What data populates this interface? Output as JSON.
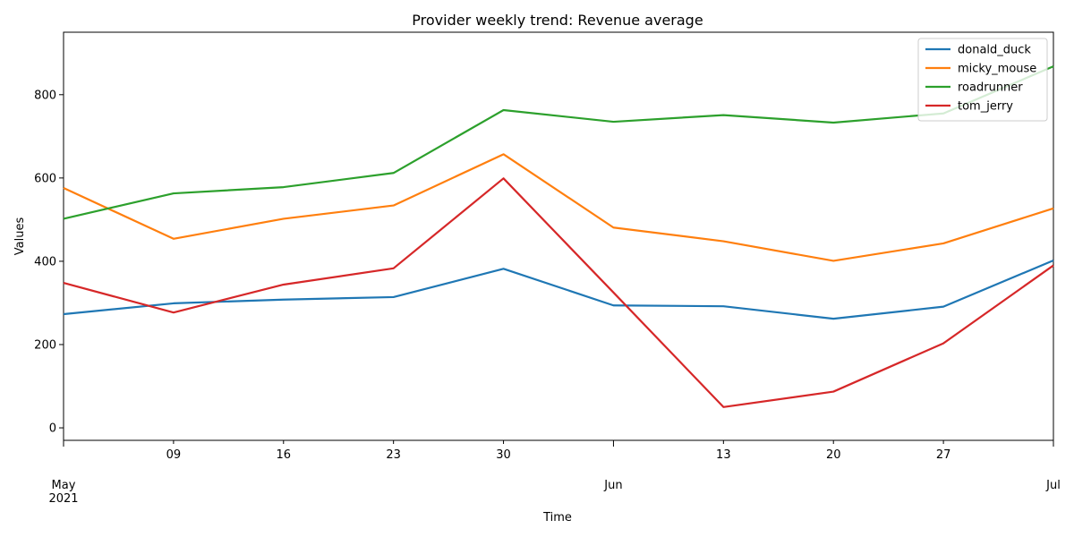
{
  "chart_data": {
    "type": "line",
    "title": "Provider weekly trend: Revenue average",
    "xlabel": "Time",
    "ylabel": "Values",
    "ylim": [
      -30,
      950
    ],
    "xlim": [
      "2021-05-02",
      "2021-07-04"
    ],
    "y_ticks": [
      0,
      200,
      400,
      600,
      800
    ],
    "x_ticks": [
      {
        "date": "2021-05-02",
        "label": "May",
        "sublabel": "2021"
      },
      {
        "date": "2021-05-09",
        "label": "09"
      },
      {
        "date": "2021-05-16",
        "label": "16"
      },
      {
        "date": "2021-05-23",
        "label": "23"
      },
      {
        "date": "2021-05-30",
        "label": "30"
      },
      {
        "date": "2021-06-06",
        "label": "Jun"
      },
      {
        "date": "2021-06-13",
        "label": "13"
      },
      {
        "date": "2021-06-20",
        "label": "20"
      },
      {
        "date": "2021-06-27",
        "label": "27"
      },
      {
        "date": "2021-07-04",
        "label": "Jul"
      }
    ],
    "x": [
      "2021-05-02",
      "2021-05-09",
      "2021-05-16",
      "2021-05-23",
      "2021-05-30",
      "2021-06-06",
      "2021-06-13",
      "2021-06-20",
      "2021-06-27",
      "2021-07-04"
    ],
    "legend_position": "top-right",
    "grid": false,
    "series": [
      {
        "name": "donald_duck",
        "color": "#1f77b4",
        "values": [
          273,
          299,
          308,
          314,
          382,
          294,
          292,
          262,
          291,
          402
        ]
      },
      {
        "name": "micky_mouse",
        "color": "#ff7f0e",
        "values": [
          576,
          454,
          502,
          534,
          657,
          481,
          448,
          401,
          443,
          527
        ]
      },
      {
        "name": "roadrunner",
        "color": "#2ca02c",
        "values": [
          502,
          563,
          578,
          612,
          763,
          735,
          751,
          733,
          755,
          868
        ]
      },
      {
        "name": "tom_jerry",
        "color": "#d62728",
        "values": [
          348,
          277,
          344,
          383,
          599,
          325,
          50,
          87,
          203,
          390
        ]
      }
    ]
  }
}
